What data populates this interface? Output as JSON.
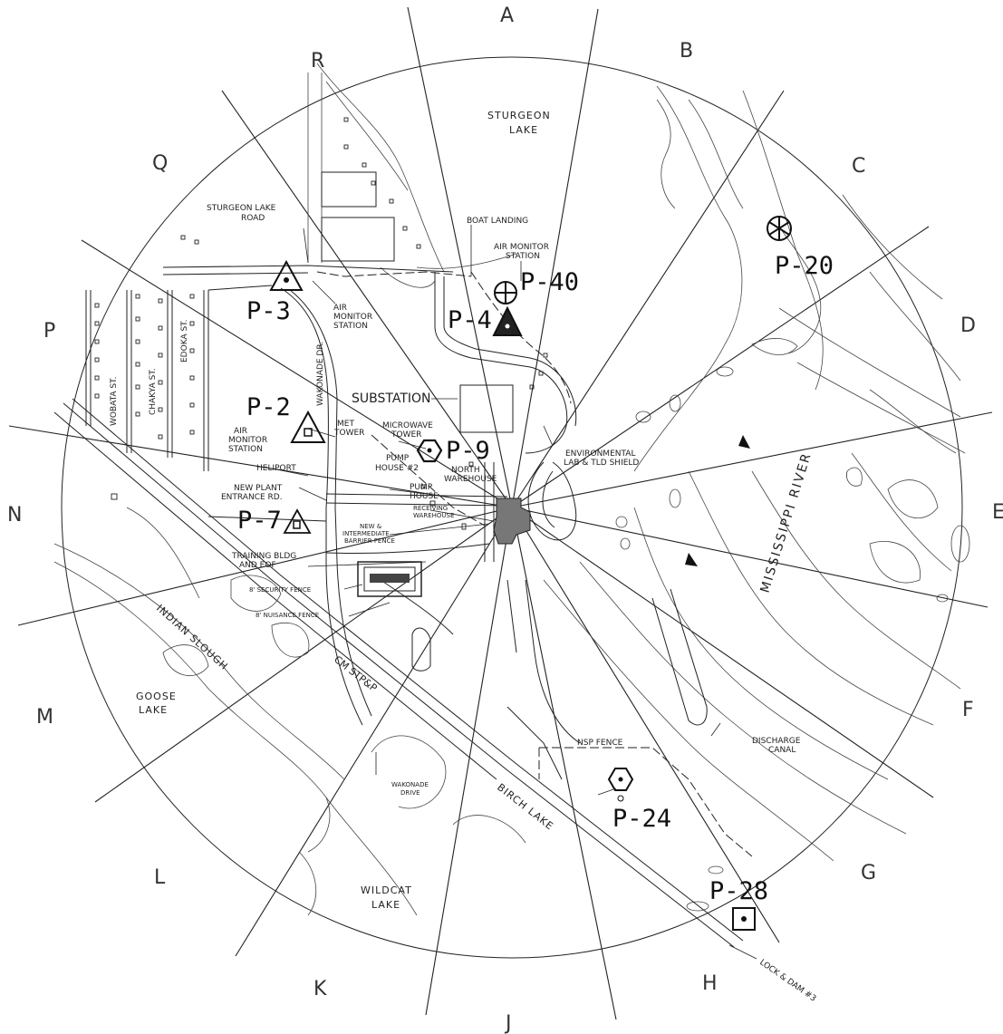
{
  "map": {
    "sectors": [
      "A",
      "B",
      "C",
      "D",
      "E",
      "F",
      "G",
      "H",
      "J",
      "K",
      "L",
      "M",
      "N",
      "P",
      "Q",
      "R"
    ],
    "stations": [
      {
        "id": "P-40",
        "symbol": "circle-cross-icon"
      },
      {
        "id": "P-4",
        "symbol": "triangle-filled-icon"
      },
      {
        "id": "P-3",
        "symbol": "triangle-dot-icon"
      },
      {
        "id": "P-2",
        "symbol": "triangle-square-icon"
      },
      {
        "id": "P-7",
        "symbol": "triangle-square-icon"
      },
      {
        "id": "P-9",
        "symbol": "hexagon-dot-icon"
      },
      {
        "id": "P-20",
        "symbol": "hexagon-star-icon"
      },
      {
        "id": "P-24",
        "symbol": "hexagon-dot-icon"
      },
      {
        "id": "P-28",
        "symbol": "square-dot-icon"
      }
    ],
    "water_labels": {
      "sturgeon_lake_1": "STURGEON",
      "sturgeon_lake_2": "LAKE",
      "goose_lake_1": "GOOSE",
      "goose_lake_2": "LAKE",
      "wildcat_lake_1": "WILDCAT",
      "wildcat_lake_2": "LAKE",
      "birch_lake": "BIRCH LAKE",
      "indian_slough": "INDIAN SLOUGH",
      "mississippi": "MISSISSIPPI RIVER"
    },
    "feature_labels": {
      "sturgeon_road_1": "STURGEON LAKE",
      "sturgeon_road_2": "ROAD",
      "boat_landing": "BOAT LANDING",
      "air_monitor_top_1": "AIR MONITOR",
      "air_monitor_top_2": "STATION",
      "air_monitor_p3_1": "AIR",
      "air_monitor_p3_2": "MONITOR",
      "air_monitor_p3_3": "STATION",
      "air_monitor_p2_1": "AIR",
      "air_monitor_p2_2": "MONITOR",
      "air_monitor_p2_3": "STATION",
      "substation": "SUBSTATION",
      "met_tower_1": "MET",
      "met_tower_2": "TOWER",
      "microwave_1": "MICROWAVE",
      "microwave_2": "TOWER",
      "pump_house2_1": "PUMP",
      "pump_house2_2": "HOUSE #2",
      "north_warehouse_1": "NORTH",
      "north_warehouse_2": "WAREHOUSE",
      "env_lab_1": "ENVIRONMENTAL",
      "env_lab_2": "LAB & TLD SHIELD",
      "heliport": "HELIPORT",
      "pump_house_1": "PUMP",
      "pump_house_2": "HOUSE",
      "receiving_1": "RECEIVING",
      "receiving_2": "WAREHOUSE",
      "new_entrance_1": "NEW PLANT",
      "new_entrance_2": "ENTRANCE RD.",
      "barrier_1": "NEW &",
      "barrier_2": "INTERMEDIATE",
      "barrier_3": "BARRIER FENCE",
      "training_1": "TRAINING BLDG",
      "training_2": "AND EOF",
      "security_fence": "8' SECURITY FENCE",
      "nuisance_fence": "8' NUISANCE FENCE",
      "cm_stpp": "CM STP&P",
      "nsp_fence": "NSP FENCE",
      "discharge_1": "DISCHARGE",
      "discharge_2": "CANAL",
      "wakonade_drive_1": "WAKONADE",
      "wakonade_drive_2": "DRIVE",
      "lock_dam": "LOCK & DAM #3",
      "wakonade_dr": "WAKONADE DR.",
      "wobata": "WOBATA ST.",
      "chakya": "CHAKYA ST.",
      "edoka": "EDOKA ST."
    },
    "colors": {
      "ink": "#222222",
      "background": "#ffffff"
    }
  }
}
